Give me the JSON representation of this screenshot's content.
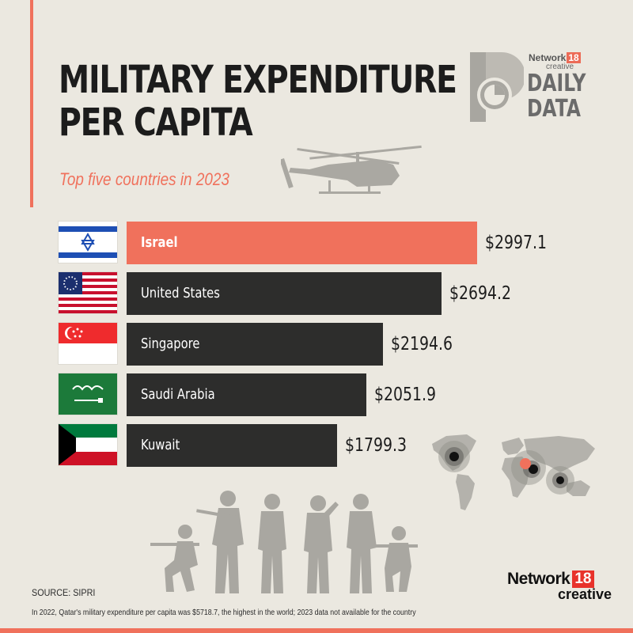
{
  "header": {
    "title_line1": "MILITARY EXPENDITURE",
    "title_line2": "PER CAPITA",
    "subtitle": "Top five countries in 2023"
  },
  "brand_badge": {
    "network": "Network",
    "network_number": "18",
    "creative": "creative",
    "daily": "DAILY",
    "data": "DATA"
  },
  "colors": {
    "accent": "#f0715c",
    "bar": "#2d2d2c",
    "background": "#ebe8e0"
  },
  "chart_data": {
    "type": "bar",
    "orientation": "horizontal",
    "title": "MILITARY EXPENDITURE PER CAPITA",
    "subtitle": "Top five countries in 2023",
    "categories": [
      "Israel",
      "United States",
      "Singapore",
      "Saudi Arabia",
      "Kuwait"
    ],
    "values": [
      2997.1,
      2694.2,
      2194.6,
      2051.9,
      1799.3
    ],
    "value_labels": [
      "$2997.1",
      "$2694.2",
      "$2194.6",
      "$2051.9",
      "$1799.3"
    ],
    "flags": [
      "israel-flag-icon",
      "us-flag-icon",
      "singapore-flag-icon",
      "saudi-flag-icon",
      "kuwait-flag-icon"
    ],
    "highlight_index": 0,
    "xlabel": "",
    "ylabel": "",
    "xlim": [
      0,
      3000
    ]
  },
  "footer": {
    "source": "SOURCE: SIPRI",
    "note": "In 2022, Qatar's military expenditure per capita was $5718.7, the highest in the world; 2023 data not available for the country",
    "logo_word": "Network",
    "logo_number": "18",
    "logo_creative": "creative"
  }
}
